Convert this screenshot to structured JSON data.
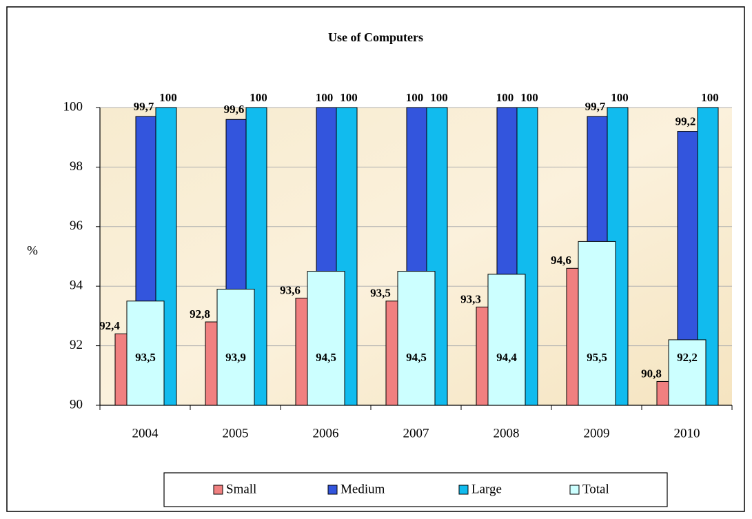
{
  "chart_data": {
    "type": "bar",
    "title": "Use of Computers",
    "y_label": "%",
    "categories": [
      "2004",
      "2005",
      "2006",
      "2007",
      "2008",
      "2009",
      "2010"
    ],
    "series": [
      {
        "name": "Small",
        "color": "#f08080",
        "values": [
          92.4,
          92.8,
          93.6,
          93.5,
          93.3,
          94.6,
          90.8
        ],
        "value_labels": [
          "92,4",
          "92,8",
          "93,6",
          "93,5",
          "93,3",
          "94,6",
          "90,8"
        ]
      },
      {
        "name": "Medium",
        "color": "#3355dd",
        "values": [
          99.7,
          99.6,
          100,
          100,
          100,
          99.7,
          99.2
        ],
        "value_labels": [
          "99,7",
          "99,6",
          "100",
          "100",
          "100",
          "99,7",
          "99,2"
        ]
      },
      {
        "name": "Large",
        "color": "#11bbee",
        "values": [
          100,
          100,
          100,
          100,
          100,
          100,
          100
        ],
        "value_labels": [
          "100",
          "100",
          "100",
          "100",
          "100",
          "100",
          "100"
        ]
      },
      {
        "name": "Total",
        "color": "#ccffff",
        "values": [
          93.5,
          93.9,
          94.5,
          94.5,
          94.4,
          95.5,
          92.2
        ],
        "value_labels": [
          "93,5",
          "93,9",
          "94,5",
          "94,5",
          "94,4",
          "95,5",
          "92,2"
        ]
      }
    ],
    "ylim": [
      90,
      100
    ],
    "yticks": [
      90,
      92,
      94,
      96,
      98,
      100
    ],
    "grid": true,
    "legend": "bottom"
  }
}
